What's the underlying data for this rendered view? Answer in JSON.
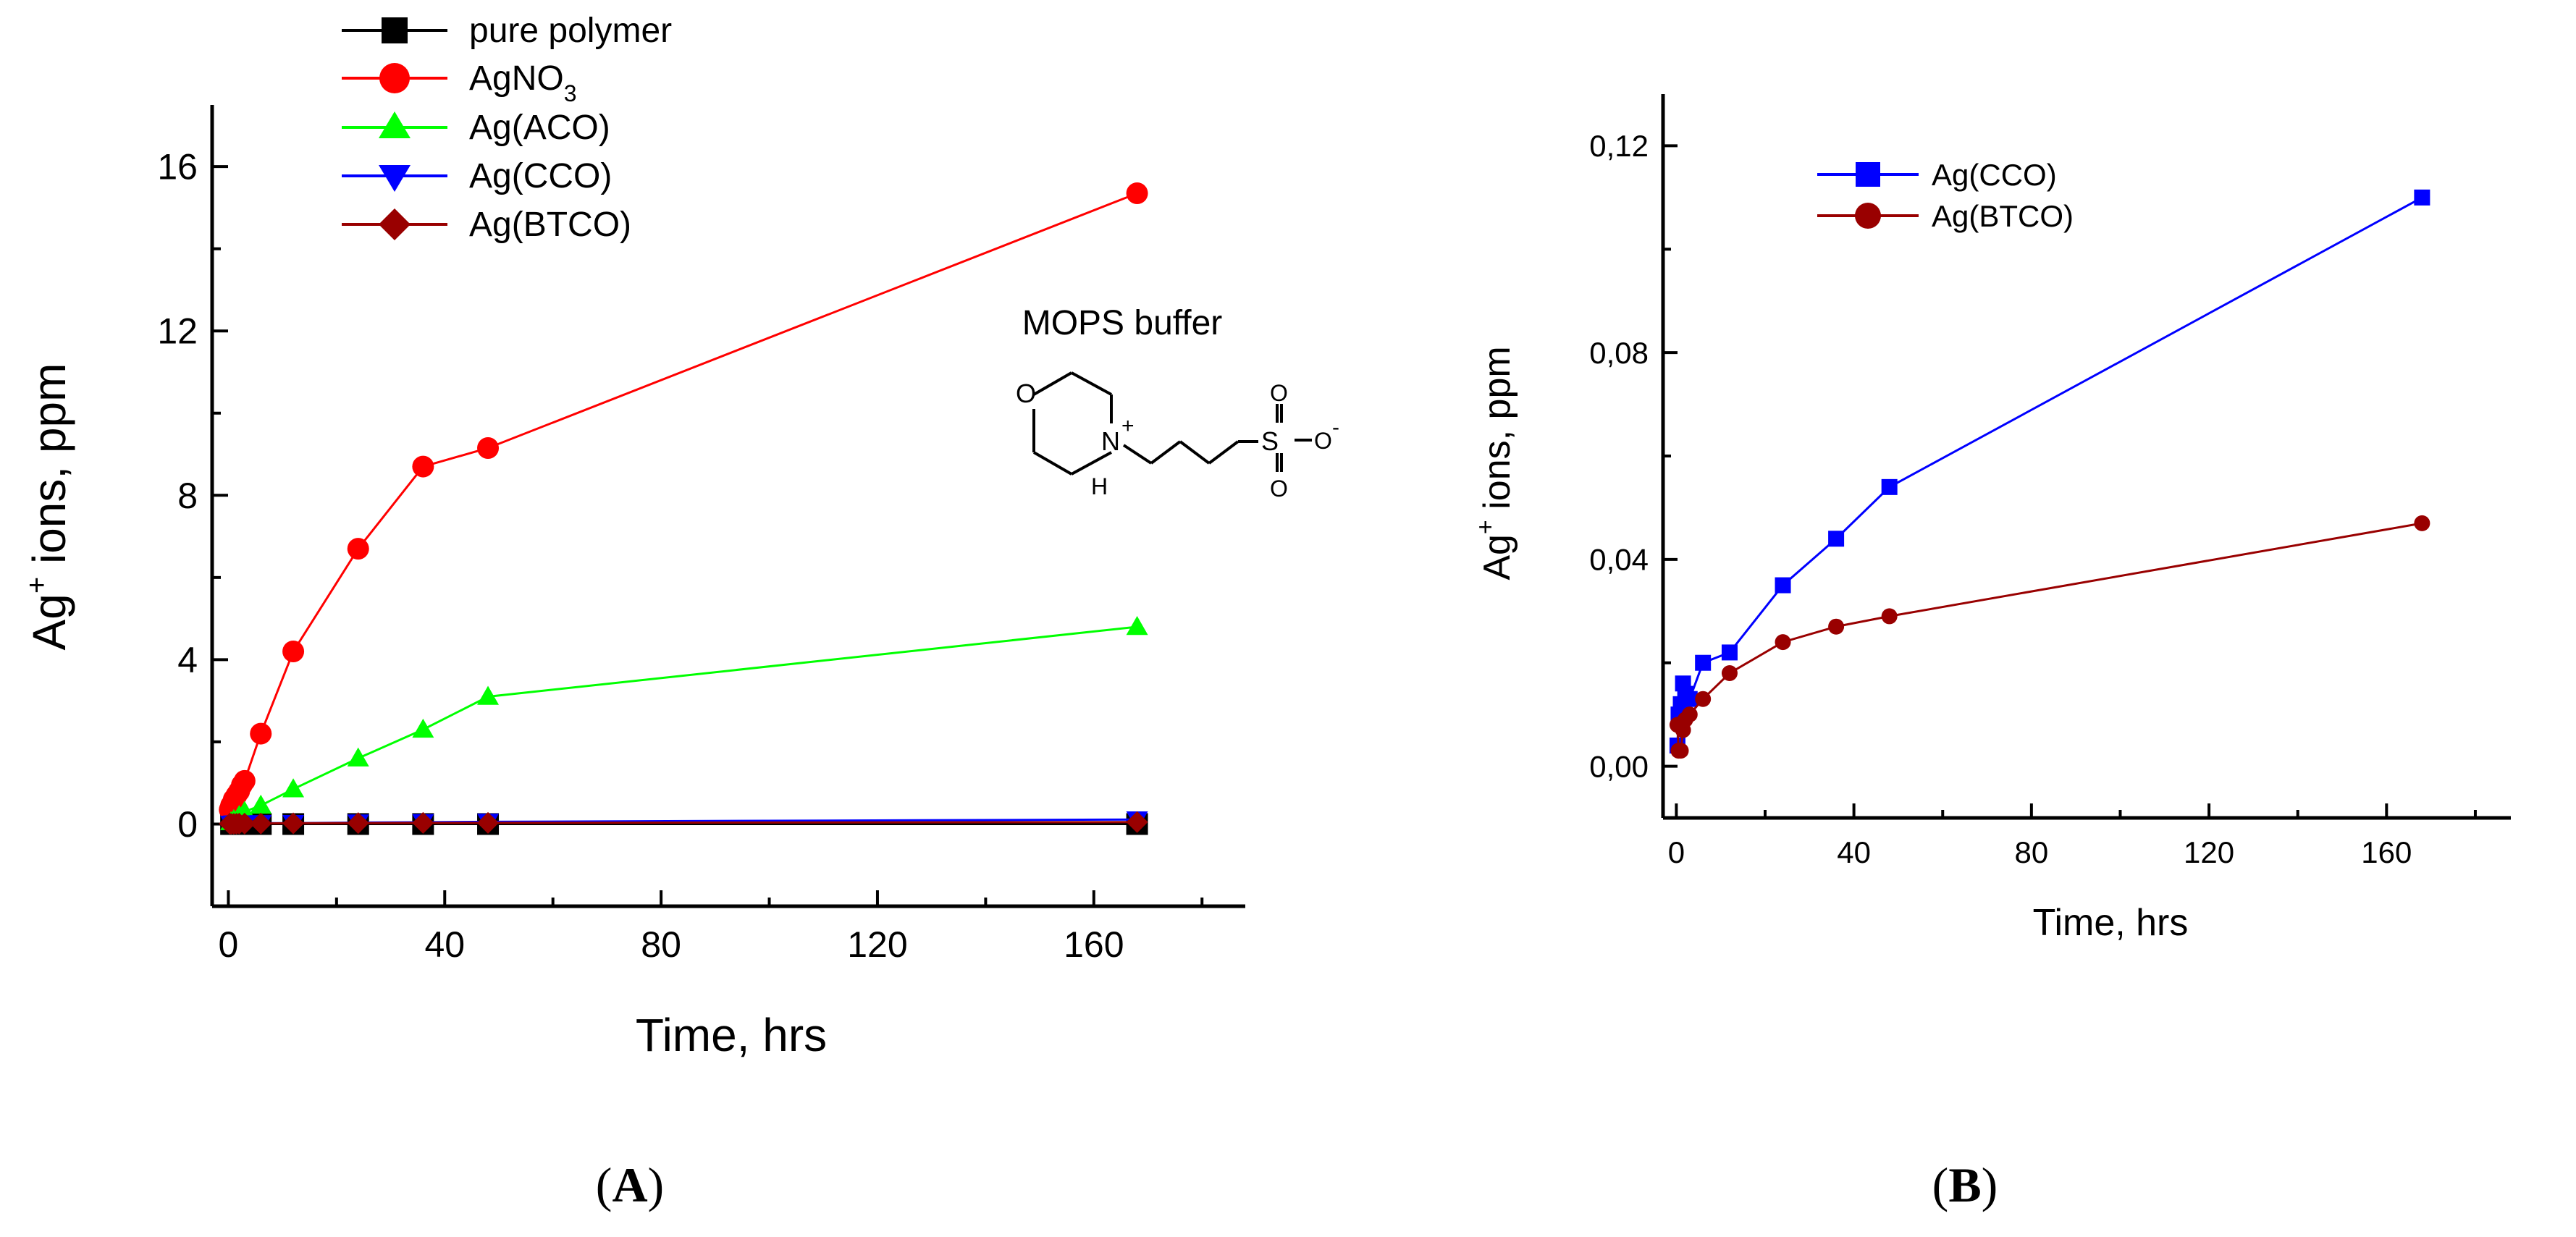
{
  "chart_data": [
    {
      "type": "line",
      "panel": "A",
      "panel_label": "A",
      "xlabel": "Time, hrs",
      "ylabel_main": "Ag",
      "ylabel_sup": "+",
      "ylabel_rest": " ions, ppm",
      "xlim": [
        -3,
        188
      ],
      "ylim": [
        -2,
        17.5
      ],
      "xticks": [
        0,
        40,
        80,
        120,
        160
      ],
      "yticks": [
        0,
        4,
        8,
        12,
        16
      ],
      "xtick_labels": [
        "0",
        "40",
        "80",
        "120",
        "160"
      ],
      "ytick_labels": [
        "0",
        "4",
        "8",
        "12",
        "16"
      ],
      "legend_position": "top-left outside",
      "annotation": {
        "title": "MOPS buffer",
        "structure_atoms": [
          "O",
          "N",
          "+",
          "H",
          "S",
          "O",
          "O",
          "O",
          "-"
        ]
      },
      "series": [
        {
          "name": "pure polymer",
          "color": "#000000",
          "marker": "square",
          "x": [
            0.5,
            1,
            1.5,
            2,
            3,
            6,
            12,
            24,
            36,
            48,
            168
          ],
          "y": [
            0,
            0,
            0,
            0,
            0,
            0,
            0,
            0,
            0,
            0,
            0
          ]
        },
        {
          "name": "AgNO3",
          "name_main": "AgNO",
          "name_sub": "3",
          "color": "#ff0000",
          "marker": "circle",
          "x": [
            0.25,
            0.5,
            0.75,
            1,
            1.5,
            2,
            2.5,
            3,
            6,
            12,
            24,
            36,
            48,
            168
          ],
          "y": [
            0.35,
            0.45,
            0.5,
            0.6,
            0.7,
            0.8,
            0.95,
            1.05,
            2.2,
            4.2,
            6.7,
            8.7,
            9.15,
            15.35
          ]
        },
        {
          "name": "Ag(ACO)",
          "color": "#00ff00",
          "marker": "triangle-up",
          "x": [
            0.5,
            1,
            2,
            3,
            6,
            12,
            24,
            36,
            48,
            168
          ],
          "y": [
            0.05,
            0.1,
            0.2,
            0.3,
            0.45,
            0.85,
            1.6,
            2.3,
            3.1,
            4.8
          ]
        },
        {
          "name": "Ag(CCO)",
          "color": "#0000ff",
          "marker": "triangle-down",
          "x": [
            0.5,
            1,
            1.5,
            2,
            3,
            6,
            12,
            24,
            36,
            48,
            168
          ],
          "y": [
            0.004,
            0.01,
            0.015,
            0.014,
            0.013,
            0.02,
            0.022,
            0.035,
            0.044,
            0.054,
            0.11
          ]
        },
        {
          "name": "Ag(BTCO)",
          "color": "#990000",
          "marker": "diamond",
          "x": [
            0.25,
            0.5,
            1,
            1.5,
            2,
            3,
            6,
            12,
            24,
            36,
            48,
            168
          ],
          "y": [
            0.008,
            0.003,
            0.003,
            0.007,
            0.01,
            0.01,
            0.013,
            0.018,
            0.024,
            0.027,
            0.029,
            0.047
          ]
        }
      ]
    },
    {
      "type": "line",
      "panel": "B",
      "panel_label": "B",
      "xlabel": "Time, hrs",
      "ylabel_main": "Ag",
      "ylabel_sup": "+",
      "ylabel_rest": " ions, ppm",
      "xlim": [
        -3,
        188
      ],
      "ylim": [
        -0.01,
        0.13
      ],
      "xticks": [
        0,
        40,
        80,
        120,
        160
      ],
      "yticks": [
        0,
        0.04,
        0.08,
        0.12
      ],
      "xtick_labels": [
        "0",
        "40",
        "80",
        "120",
        "160"
      ],
      "ytick_labels": [
        "0,00",
        "0,04",
        "0,08",
        "0,12"
      ],
      "legend_position": "top-left inside",
      "series": [
        {
          "name": "Ag(CCO)",
          "color": "#0000ff",
          "marker": "square",
          "x": [
            0.25,
            0.5,
            1,
            1.5,
            2,
            3,
            6,
            12,
            24,
            36,
            48,
            168
          ],
          "y": [
            0.004,
            0.01,
            0.012,
            0.016,
            0.014,
            0.013,
            0.02,
            0.022,
            0.035,
            0.044,
            0.054,
            0.11
          ]
        },
        {
          "name": "Ag(BTCO)",
          "color": "#990000",
          "marker": "circle",
          "x": [
            0.25,
            0.5,
            1,
            1.5,
            2,
            3,
            6,
            12,
            24,
            36,
            48,
            168
          ],
          "y": [
            0.008,
            0.003,
            0.003,
            0.007,
            0.009,
            0.01,
            0.013,
            0.018,
            0.024,
            0.027,
            0.029,
            0.047
          ]
        }
      ]
    }
  ]
}
